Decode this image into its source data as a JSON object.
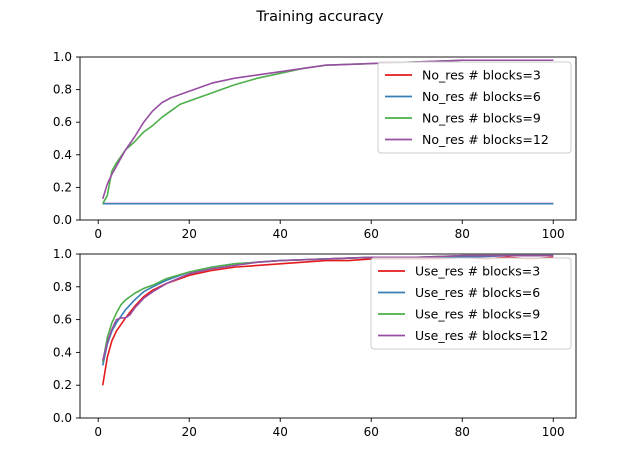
{
  "figure": {
    "title": "Training accuracy"
  },
  "chart_data": [
    {
      "type": "line",
      "xlim": [
        -4,
        105
      ],
      "ylim": [
        0.0,
        1.0
      ],
      "xticks": [
        0,
        20,
        40,
        60,
        80,
        100
      ],
      "yticks": [
        0.0,
        0.2,
        0.4,
        0.6,
        0.8,
        1.0
      ],
      "xtick_labels": [
        "0",
        "20",
        "40",
        "60",
        "80",
        "100"
      ],
      "ytick_labels": [
        "0.0",
        "0.2",
        "0.4",
        "0.6",
        "0.8",
        "1.0"
      ],
      "grid": false,
      "legend": "upper-right",
      "x_range": [
        1,
        100
      ],
      "series": [
        {
          "name": "No_res # blocks=3",
          "color": "#e41a1c",
          "x": [
            1,
            2,
            3,
            4,
            5,
            10,
            20,
            50,
            100
          ],
          "y": [
            0.1,
            0.1,
            0.1,
            0.1,
            0.1,
            0.1,
            0.1,
            0.1,
            0.1
          ]
        },
        {
          "name": "No_res # blocks=6",
          "color": "#377eb8",
          "x": [
            1,
            2,
            3,
            4,
            5,
            10,
            20,
            50,
            100
          ],
          "y": [
            0.1,
            0.1,
            0.1,
            0.1,
            0.1,
            0.1,
            0.1,
            0.1,
            0.1
          ]
        },
        {
          "name": "No_res # blocks=9",
          "color": "#4daf4a",
          "x": [
            1,
            2,
            3,
            4,
            5,
            6,
            8,
            10,
            12,
            14,
            16,
            18,
            20,
            25,
            30,
            35,
            40,
            45,
            50,
            60,
            70,
            80,
            90,
            100
          ],
          "y": [
            0.1,
            0.15,
            0.3,
            0.35,
            0.39,
            0.43,
            0.48,
            0.54,
            0.58,
            0.63,
            0.67,
            0.71,
            0.73,
            0.78,
            0.83,
            0.87,
            0.9,
            0.93,
            0.95,
            0.96,
            0.97,
            0.98,
            0.98,
            0.98
          ]
        },
        {
          "name": "No_res # blocks=12",
          "color": "#984ea3",
          "x": [
            1,
            2,
            3,
            4,
            5,
            6,
            8,
            10,
            12,
            14,
            16,
            18,
            20,
            25,
            30,
            35,
            40,
            45,
            50,
            60,
            70,
            80,
            90,
            100
          ],
          "y": [
            0.13,
            0.22,
            0.28,
            0.33,
            0.38,
            0.43,
            0.51,
            0.6,
            0.67,
            0.72,
            0.75,
            0.77,
            0.79,
            0.84,
            0.87,
            0.89,
            0.91,
            0.93,
            0.95,
            0.96,
            0.97,
            0.98,
            0.98,
            0.98
          ]
        }
      ]
    },
    {
      "type": "line",
      "xlim": [
        -4,
        105
      ],
      "ylim": [
        0.0,
        1.0
      ],
      "xticks": [
        0,
        20,
        40,
        60,
        80,
        100
      ],
      "yticks": [
        0.0,
        0.2,
        0.4,
        0.6,
        0.8,
        1.0
      ],
      "xtick_labels": [
        "0",
        "20",
        "40",
        "60",
        "80",
        "100"
      ],
      "ytick_labels": [
        "0.0",
        "0.2",
        "0.4",
        "0.6",
        "0.8",
        "1.0"
      ],
      "grid": false,
      "legend": "upper-right",
      "series": [
        {
          "name": "Use_res # blocks=3",
          "color": "#e41a1c",
          "x": [
            1,
            2,
            3,
            4,
            5,
            6,
            8,
            10,
            12,
            15,
            20,
            25,
            30,
            35,
            40,
            45,
            50,
            55,
            60,
            65,
            70,
            75,
            80,
            85,
            90,
            95,
            100
          ],
          "y": [
            0.2,
            0.37,
            0.47,
            0.53,
            0.57,
            0.61,
            0.68,
            0.74,
            0.78,
            0.82,
            0.87,
            0.9,
            0.92,
            0.93,
            0.94,
            0.95,
            0.96,
            0.96,
            0.97,
            0.97,
            0.97,
            0.97,
            0.98,
            0.97,
            0.98,
            0.97,
            0.98
          ]
        },
        {
          "name": "Use_res # blocks=6",
          "color": "#377eb8",
          "x": [
            1,
            2,
            3,
            4,
            5,
            6,
            8,
            10,
            12,
            15,
            20,
            25,
            30,
            35,
            40,
            50,
            60,
            70,
            80,
            90,
            100
          ],
          "y": [
            0.32,
            0.45,
            0.53,
            0.58,
            0.62,
            0.66,
            0.72,
            0.77,
            0.8,
            0.84,
            0.89,
            0.92,
            0.94,
            0.95,
            0.96,
            0.97,
            0.98,
            0.98,
            0.98,
            0.99,
            0.99
          ]
        },
        {
          "name": "Use_res # blocks=9",
          "color": "#4daf4a",
          "x": [
            1,
            2,
            3,
            4,
            5,
            6,
            8,
            10,
            12,
            15,
            20,
            25,
            30,
            35,
            40,
            50,
            60,
            70,
            80,
            90,
            100
          ],
          "y": [
            0.34,
            0.49,
            0.58,
            0.64,
            0.69,
            0.72,
            0.76,
            0.79,
            0.81,
            0.85,
            0.89,
            0.92,
            0.94,
            0.95,
            0.96,
            0.97,
            0.98,
            0.98,
            0.99,
            0.99,
            0.99
          ]
        },
        {
          "name": "Use_res # blocks=12",
          "color": "#984ea3",
          "x": [
            1,
            2,
            3,
            4,
            5,
            6,
            7,
            8,
            10,
            12,
            15,
            20,
            25,
            30,
            35,
            40,
            50,
            60,
            70,
            80,
            90,
            100
          ],
          "y": [
            0.35,
            0.46,
            0.54,
            0.6,
            0.61,
            0.61,
            0.63,
            0.67,
            0.73,
            0.77,
            0.82,
            0.88,
            0.91,
            0.93,
            0.95,
            0.96,
            0.97,
            0.98,
            0.98,
            0.99,
            0.99,
            0.99
          ]
        }
      ]
    }
  ]
}
